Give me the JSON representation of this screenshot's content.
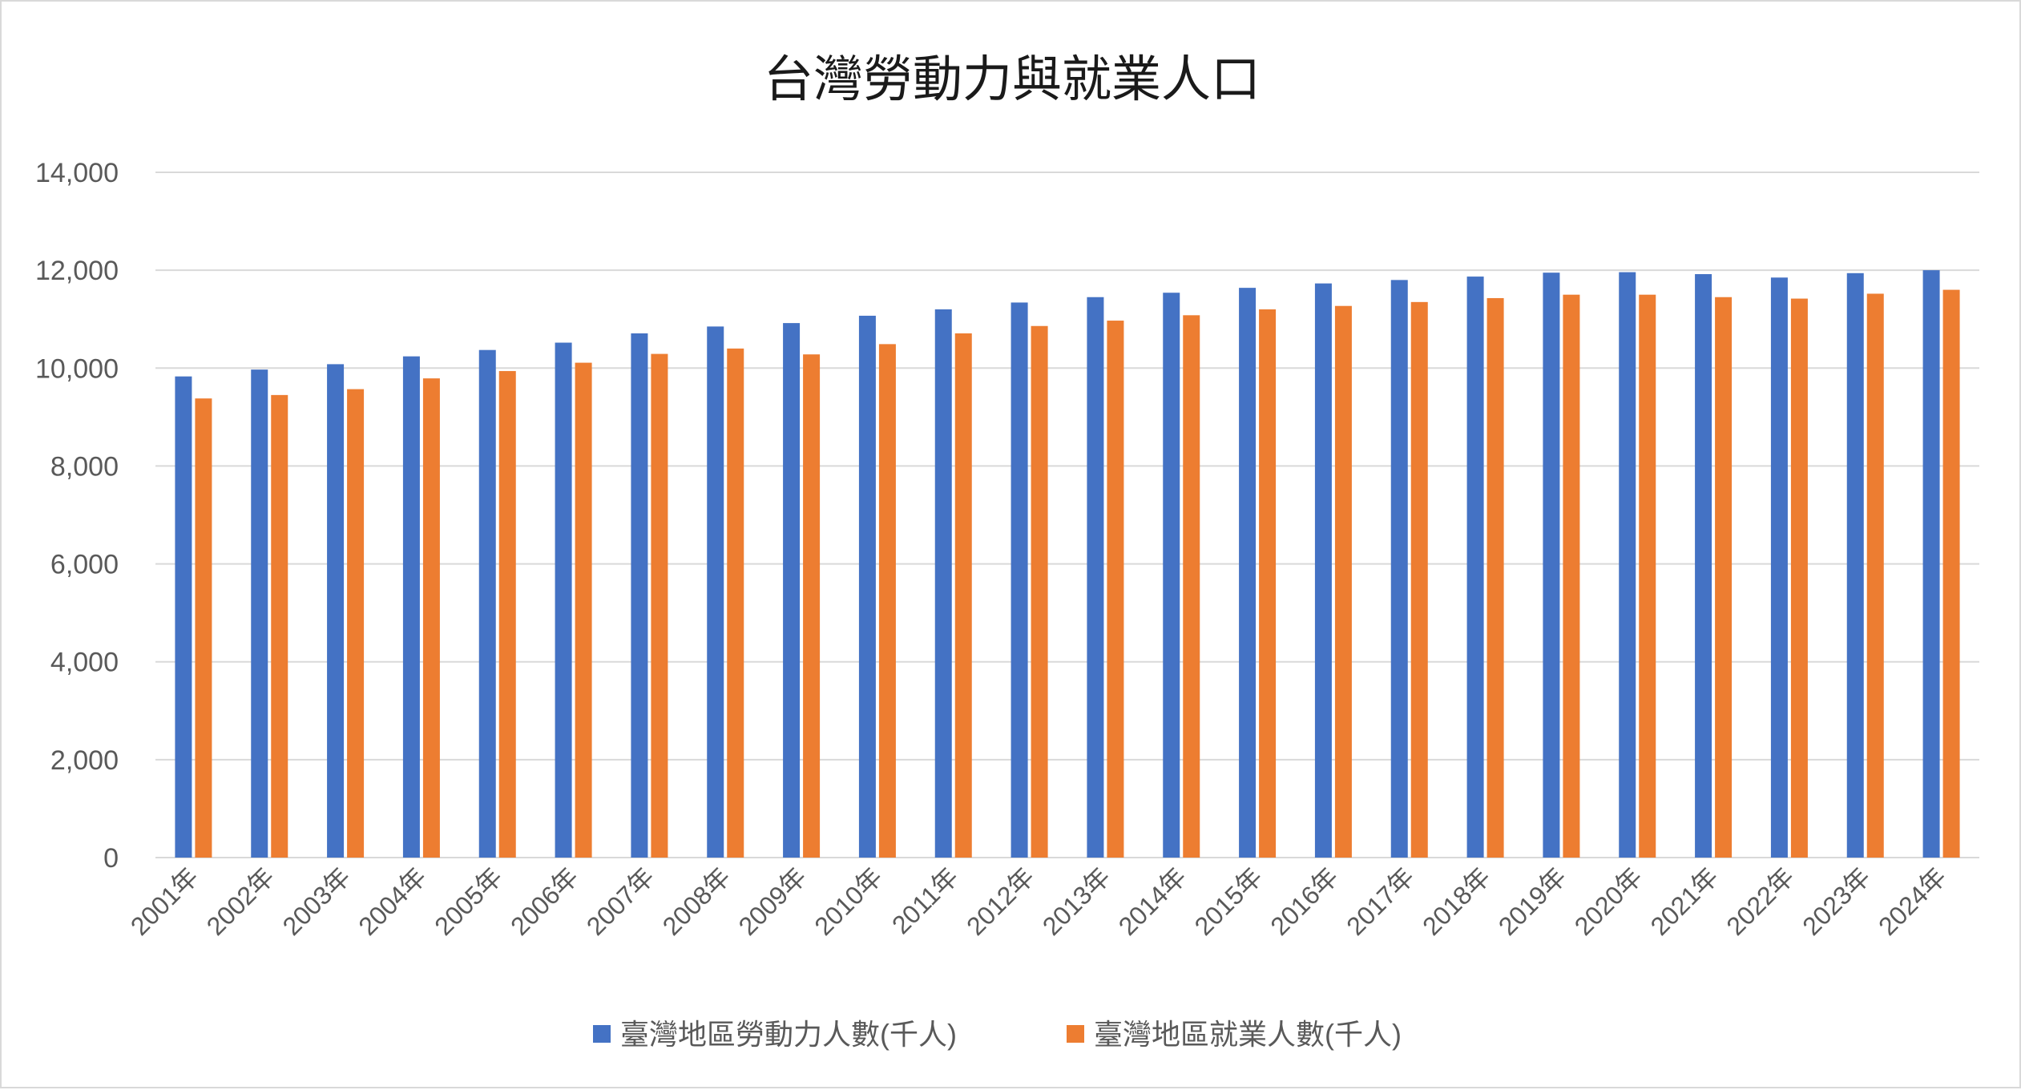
{
  "chart_data": {
    "type": "bar",
    "title": "台灣勞動力與就業人口",
    "xlabel": "",
    "ylabel": "",
    "ylim": [
      0,
      14000
    ],
    "y_ticks": [
      "0",
      "2,000",
      "4,000",
      "6,000",
      "8,000",
      "10,000",
      "12,000",
      "14,000"
    ],
    "y_tick_values": [
      0,
      2000,
      4000,
      6000,
      8000,
      10000,
      12000,
      14000
    ],
    "grid": true,
    "legend_position": "bottom",
    "categories": [
      "2001年",
      "2002年",
      "2003年",
      "2004年",
      "2005年",
      "2006年",
      "2007年",
      "2008年",
      "2009年",
      "2010年",
      "2011年",
      "2012年",
      "2013年",
      "2014年",
      "2015年",
      "2016年",
      "2017年",
      "2018年",
      "2019年",
      "2020年",
      "2021年",
      "2022年",
      "2023年",
      "2024年"
    ],
    "series": [
      {
        "name": "臺灣地區勞動力人數(千人)",
        "color": "#4472c4",
        "values": [
          9830,
          9970,
          10080,
          10240,
          10370,
          10520,
          10710,
          10850,
          10920,
          11070,
          11200,
          11340,
          11450,
          11540,
          11640,
          11730,
          11800,
          11870,
          11950,
          11960,
          11920,
          11850,
          11940,
          12000
        ]
      },
      {
        "name": "臺灣地區就業人數(千人)",
        "color": "#ed7d31",
        "values": [
          9380,
          9450,
          9570,
          9790,
          9940,
          10110,
          10290,
          10400,
          10280,
          10490,
          10710,
          10860,
          10970,
          11080,
          11200,
          11270,
          11350,
          11430,
          11500,
          11500,
          11450,
          11420,
          11520,
          11600
        ]
      }
    ]
  }
}
